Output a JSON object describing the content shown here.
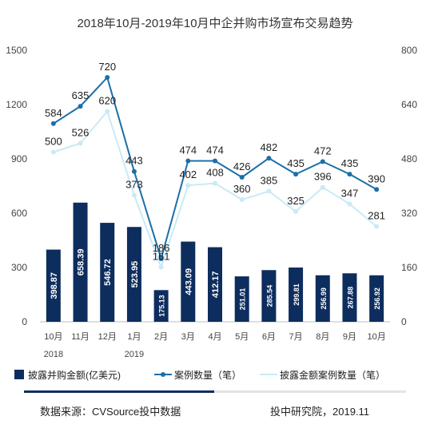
{
  "chart_data": {
    "type": "bar",
    "title": "2018年10月-2019年10月中企并购市场宣布交易趋势",
    "categories": [
      "10月",
      "11月",
      "12月",
      "1月",
      "2月",
      "3月",
      "4月",
      "5月",
      "6月",
      "7月",
      "8月",
      "9月",
      "10月"
    ],
    "category_sublabels": {
      "0": "2018",
      "3": "2019"
    },
    "y_left": {
      "ticks": [
        0,
        300,
        600,
        900,
        1200,
        1500
      ],
      "range": [
        0,
        1500
      ]
    },
    "y_right": {
      "ticks": [
        0,
        160,
        320,
        480,
        640,
        800
      ],
      "range": [
        0,
        800
      ]
    },
    "series": [
      {
        "name": "披露并购金额(亿美元)",
        "type": "bar",
        "axis": "left",
        "color": "#0d2d5e",
        "values": [
          398.87,
          658.39,
          546.72,
          523.95,
          175.13,
          443.09,
          412.17,
          251.01,
          285.54,
          299.81,
          256.99,
          267.88,
          256.92
        ],
        "labels": [
          "398.87",
          "658.39",
          "546.72",
          "523.95",
          "175.13",
          "443.09",
          "412.17",
          "251.01",
          "285.54",
          "299.81",
          "256.99",
          "267.88",
          "256.92"
        ]
      },
      {
        "name": "案例数量（笔）",
        "type": "line",
        "axis": "right",
        "color": "#1b6fa8",
        "values": [
          584,
          635,
          720,
          443,
          186,
          474,
          474,
          426,
          482,
          435,
          472,
          435,
          390
        ]
      },
      {
        "name": "披露金额案例数量（笔）",
        "type": "line",
        "axis": "right",
        "color": "#c9eaf6",
        "values": [
          500,
          526,
          620,
          373,
          161,
          402,
          408,
          360,
          385,
          325,
          396,
          347,
          281
        ]
      }
    ]
  },
  "legend": {
    "bar": "披露并购金额(亿美元)",
    "line1": "案例数量（笔）",
    "line2": "披露金额案例数量（笔）"
  },
  "footer": {
    "source": "数据来源：CVSource投中数据",
    "credit": "投中研究院，2019.11"
  }
}
